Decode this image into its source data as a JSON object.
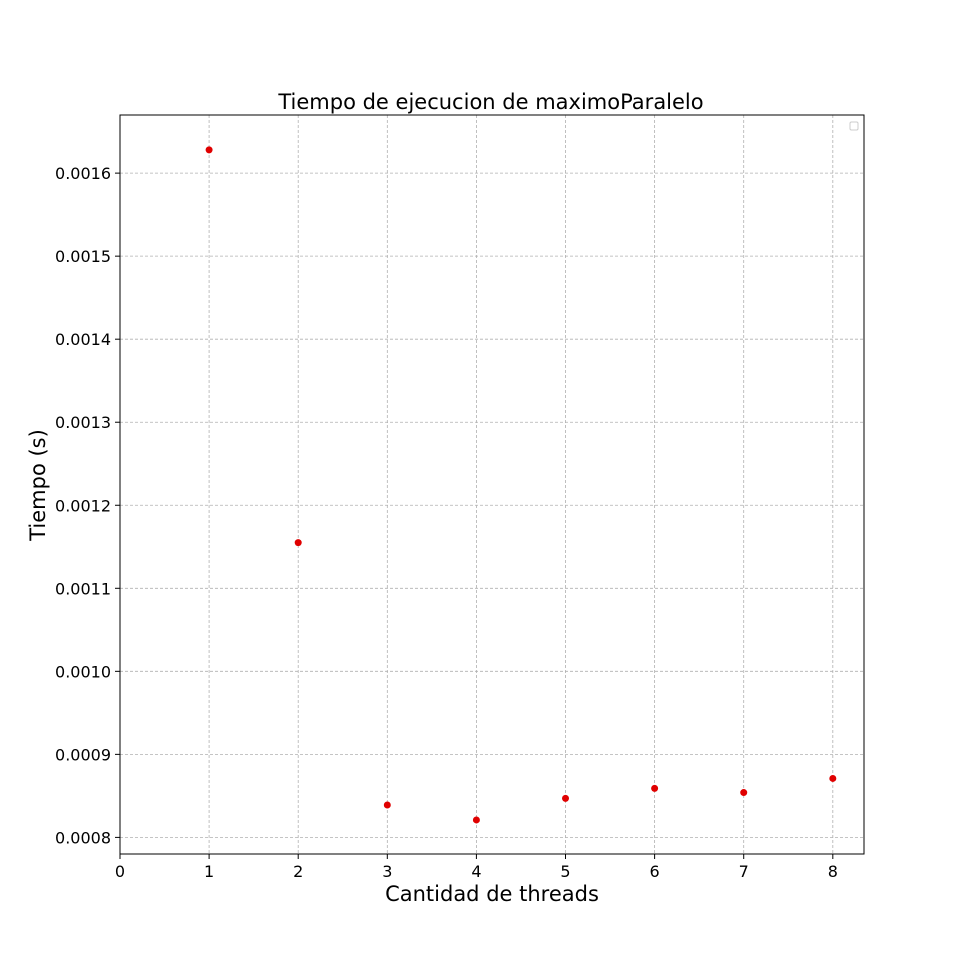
{
  "chart_data": {
    "type": "scatter",
    "title": "Tiempo de ejecucion de maximoParalelo",
    "xlabel": "Cantidad de threads",
    "ylabel": "Tiempo (s)",
    "xlim": [
      0,
      8.35
    ],
    "ylim": [
      0.00078,
      0.00167
    ],
    "xticks": [
      0,
      1,
      2,
      3,
      4,
      5,
      6,
      7,
      8
    ],
    "yticks": [
      0.0008,
      0.0009,
      0.001,
      0.0011,
      0.0012,
      0.0013,
      0.0014,
      0.0015,
      0.0016
    ],
    "ytick_labels": [
      "0.0008",
      "0.0009",
      "0.0010",
      "0.0011",
      "0.0012",
      "0.0013",
      "0.0014",
      "0.0015",
      "0.0016"
    ],
    "grid": true,
    "legend": "top-right",
    "series": [
      {
        "color": "#e00000",
        "x": [
          1,
          2,
          3,
          4,
          5,
          6,
          7,
          8
        ],
        "y": [
          0.001628,
          0.001155,
          0.000839,
          0.000821,
          0.000847,
          0.000859,
          0.000854,
          0.000871
        ]
      }
    ]
  }
}
